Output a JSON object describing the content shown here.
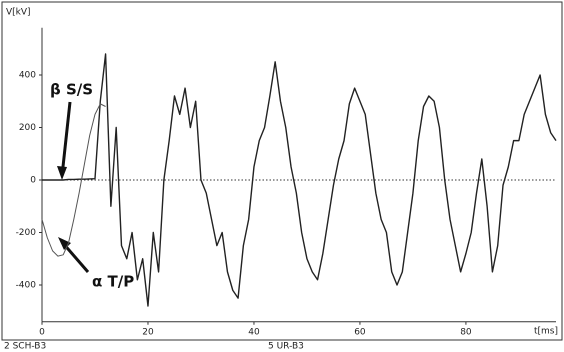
{
  "chart_data": {
    "type": "line",
    "y_label": "V[kV]",
    "x_label": "t[ms]",
    "footer_left": "2 SCH-B3",
    "footer_center": "5 UR-B3",
    "xlim": [
      0,
      97
    ],
    "ylim": [
      -540,
      580
    ],
    "xticks": [
      0,
      20,
      40,
      60,
      80
    ],
    "yticks": [
      400,
      200,
      0,
      -200,
      -400
    ],
    "zero_line": true,
    "series": [
      {
        "name": "β S/S",
        "color": "#222222",
        "x": [
          0,
          1,
          2,
          3,
          4,
          5,
          6,
          7,
          8,
          9,
          10,
          11,
          12,
          13,
          14,
          15,
          16,
          17,
          18,
          19,
          20,
          21,
          22,
          23,
          24,
          25,
          26,
          27,
          28,
          29,
          30,
          31,
          32,
          33,
          34,
          35,
          36,
          37,
          38,
          39,
          40,
          41,
          42,
          43,
          44,
          45,
          46,
          47,
          48,
          49,
          50,
          51,
          52,
          53,
          54,
          55,
          56,
          57,
          58,
          59,
          60,
          61,
          62,
          63,
          64,
          65,
          66,
          67,
          68,
          69,
          70,
          71,
          72,
          73,
          74,
          75,
          76,
          77,
          78,
          79,
          80,
          81,
          82,
          83,
          84,
          85,
          86,
          87,
          88,
          89,
          90,
          91,
          92,
          93,
          94,
          95,
          96,
          97
        ],
        "values": [
          0,
          0,
          0,
          0,
          0,
          2,
          2,
          3,
          3,
          4,
          5,
          300,
          480,
          -100,
          200,
          -250,
          -300,
          -200,
          -380,
          -300,
          -480,
          -200,
          -350,
          0,
          150,
          320,
          250,
          350,
          200,
          300,
          0,
          -50,
          -150,
          -250,
          -200,
          -350,
          -420,
          -450,
          -250,
          -150,
          50,
          150,
          200,
          320,
          450,
          300,
          200,
          50,
          -50,
          -200,
          -300,
          -350,
          -380,
          -280,
          -150,
          -20,
          80,
          150,
          290,
          350,
          300,
          250,
          100,
          -50,
          -150,
          -200,
          -350,
          -400,
          -350,
          -200,
          -50,
          150,
          280,
          320,
          300,
          200,
          0,
          -150,
          -250,
          -350,
          -280,
          -200,
          -50,
          80,
          -100,
          -350,
          -250,
          -20,
          50,
          150,
          150,
          250,
          300,
          350,
          400,
          250,
          180,
          150
        ]
      },
      {
        "name": "α T/P",
        "color": "#555555",
        "x": [
          0,
          1,
          2,
          3,
          4,
          5,
          6,
          7,
          8,
          9,
          10,
          11,
          12
        ],
        "values": [
          -150,
          -220,
          -270,
          -290,
          -285,
          -240,
          -150,
          -50,
          60,
          170,
          250,
          290,
          280
        ]
      }
    ]
  }
}
